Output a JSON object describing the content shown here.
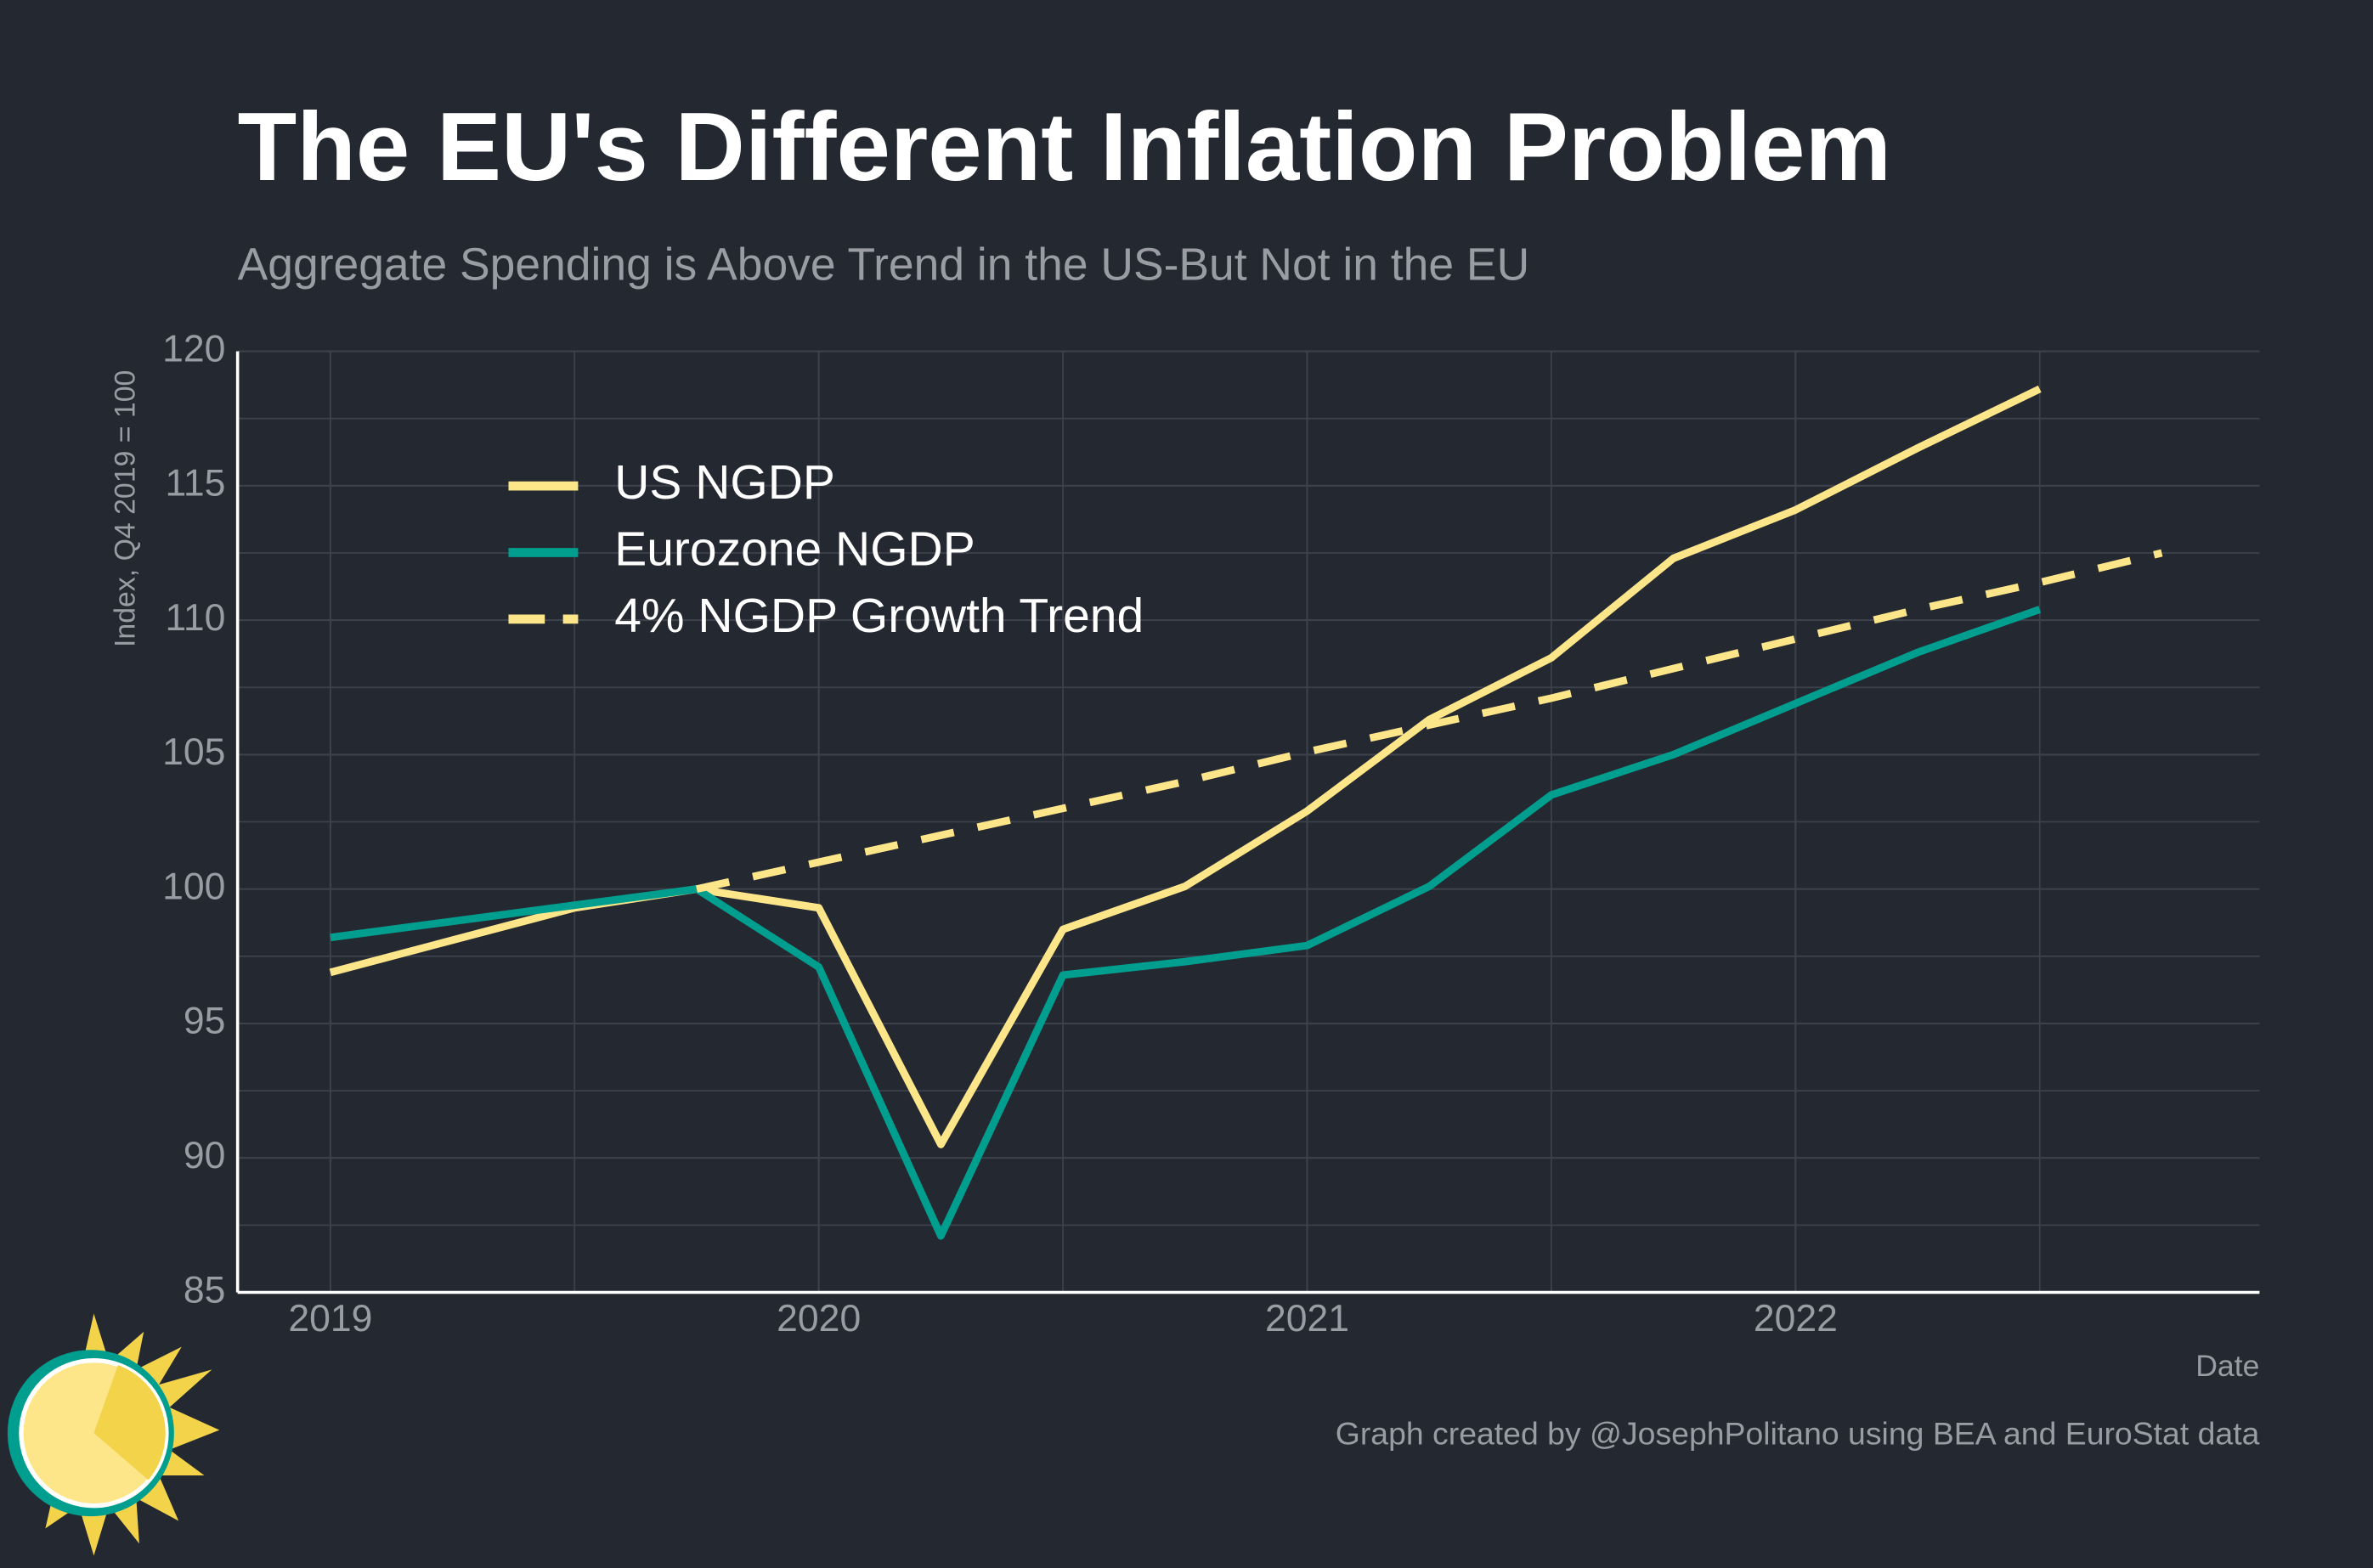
{
  "chart_data": {
    "type": "line",
    "title": "The EU's Different Inflation Problem",
    "subtitle": "Aggregate Spending is Above Trend in the US-But Not in the EU",
    "y_label": "Index, Q4 2019 = 100",
    "x_label": "Date",
    "caption": "Graph created by @JosephPolitano using BEA and EuroStat data",
    "x": [
      2019,
      2019.25,
      2019.5,
      2019.75,
      2020,
      2020.25,
      2020.5,
      2020.75,
      2021,
      2021.25,
      2021.5,
      2021.75,
      2022,
      2022.25,
      2022.5,
      2022.75
    ],
    "series": [
      {
        "name": "US NGDP",
        "color": "#fde68a",
        "dash": false,
        "values": [
          96.9,
          98.1,
          99.3,
          100.0,
          99.3,
          90.5,
          98.5,
          100.1,
          102.9,
          106.3,
          108.6,
          112.3,
          114.1,
          116.4,
          118.6,
          null
        ]
      },
      {
        "name": "Eurozone NGDP",
        "color": "#009e8e",
        "dash": false,
        "values": [
          98.2,
          98.8,
          99.4,
          100.0,
          97.1,
          87.1,
          96.8,
          97.3,
          97.9,
          100.1,
          103.5,
          105.0,
          106.9,
          108.8,
          110.4,
          null
        ]
      },
      {
        "name": "4% NGDP Growth Trend",
        "color": "#fde68a",
        "dash": true,
        "values": [
          null,
          null,
          null,
          100.0,
          101.0,
          102.0,
          103.0,
          104.0,
          105.1,
          106.1,
          107.1,
          108.2,
          109.3,
          110.4,
          111.4,
          112.5
        ]
      }
    ],
    "xlim": [
      2018.81,
      2022.95
    ],
    "xticks": [
      2019,
      2020,
      2021,
      2022
    ],
    "ylim": [
      85,
      120
    ],
    "yticks": [
      85,
      90,
      95,
      100,
      105,
      110,
      115,
      120
    ],
    "grid": true,
    "legend": "top-left"
  }
}
